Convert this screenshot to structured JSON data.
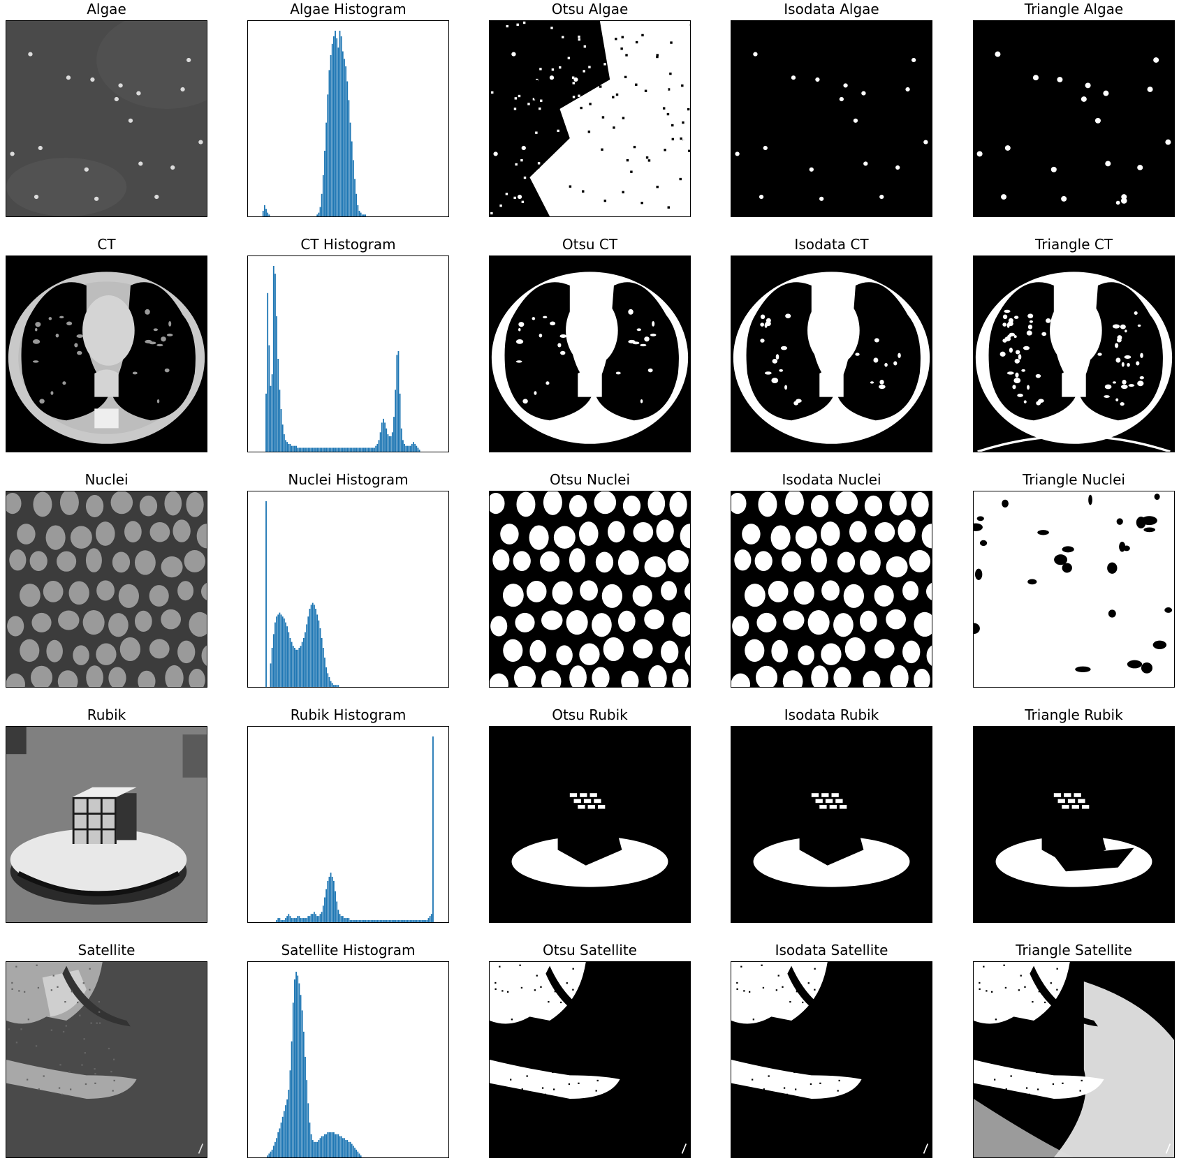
{
  "figure": {
    "rows": [
      {
        "name": "Algae",
        "titles": [
          "Algae",
          "Algae Histogram",
          "Otsu Algae",
          "Isodata Algae",
          "Triangle Algae"
        ],
        "scene": "algae",
        "histogram": [
          0,
          0,
          0,
          3,
          6,
          4,
          2,
          1,
          0,
          0,
          0,
          0,
          0,
          0,
          0,
          0,
          0,
          0,
          0,
          0,
          0,
          0,
          0,
          0,
          0,
          0,
          0,
          0,
          0,
          0,
          0,
          0,
          0,
          0,
          0,
          0,
          0,
          0,
          0,
          1,
          2,
          5,
          12,
          22,
          35,
          50,
          65,
          78,
          86,
          92,
          96,
          99,
          95,
          90,
          99,
          96,
          88,
          84,
          80,
          72,
          62,
          50,
          40,
          30,
          20,
          12,
          6,
          3,
          2,
          1,
          1,
          1,
          0,
          0,
          0,
          0,
          0,
          0,
          0,
          0,
          0,
          0,
          0,
          0,
          0,
          0,
          0,
          0,
          0,
          0,
          0,
          0,
          0,
          0,
          0,
          0,
          0,
          0,
          0,
          0,
          0,
          0,
          0,
          0,
          0,
          0,
          0,
          0,
          0,
          0,
          0,
          0,
          0,
          0,
          0,
          0,
          0,
          0,
          0,
          0
        ]
      },
      {
        "name": "CT",
        "titles": [
          "CT",
          "CT Histogram",
          "Otsu CT",
          "Isodata CT",
          "Triangle CT"
        ],
        "scene": "ct",
        "histogram": [
          0,
          0,
          0,
          0,
          0,
          30,
          82,
          55,
          34,
          40,
          96,
          92,
          70,
          48,
          32,
          22,
          14,
          9,
          6,
          5,
          4,
          4,
          3,
          3,
          3,
          3,
          2,
          2,
          2,
          2,
          2,
          2,
          2,
          2,
          2,
          2,
          2,
          2,
          2,
          2,
          2,
          2,
          2,
          2,
          2,
          2,
          2,
          2,
          2,
          2,
          2,
          2,
          2,
          2,
          2,
          2,
          2,
          2,
          2,
          2,
          2,
          2,
          2,
          2,
          2,
          2,
          2,
          2,
          2,
          2,
          2,
          2,
          2,
          2,
          2,
          2,
          2,
          2,
          3,
          4,
          6,
          10,
          15,
          17,
          15,
          12,
          9,
          8,
          8,
          10,
          18,
          32,
          50,
          52,
          30,
          12,
          6,
          4,
          3,
          3,
          3,
          3,
          4,
          5,
          4,
          3,
          2,
          1,
          0,
          0,
          0,
          0,
          0,
          0,
          0,
          0,
          0,
          0,
          0,
          0
        ]
      },
      {
        "name": "Nuclei",
        "titles": [
          "Nuclei",
          "Nuclei Histogram",
          "Otsu Nuclei",
          "Isodata Nuclei",
          "Triangle Nuclei"
        ],
        "scene": "nuclei",
        "histogram": [
          0,
          0,
          0,
          0,
          0,
          95,
          0,
          0,
          12,
          20,
          27,
          33,
          36,
          37,
          38,
          37,
          36,
          35,
          33,
          31,
          28,
          25,
          23,
          21,
          20,
          19,
          19,
          20,
          21,
          23,
          25,
          28,
          32,
          36,
          40,
          42,
          43,
          42,
          40,
          37,
          34,
          30,
          25,
          20,
          15,
          10,
          7,
          5,
          3,
          2,
          1,
          1,
          1,
          1,
          0,
          0,
          0,
          0,
          0,
          0,
          0,
          0,
          0,
          0,
          0,
          0,
          0,
          0,
          0,
          0,
          0,
          0,
          0,
          0,
          0,
          0,
          0,
          0,
          0,
          0,
          0,
          0,
          0,
          0,
          0,
          0,
          0,
          0,
          0,
          0,
          0,
          0,
          0,
          0,
          0,
          0,
          0,
          0,
          0,
          0,
          0,
          0,
          0,
          0,
          0,
          0,
          0,
          0,
          0,
          0,
          0,
          0,
          0,
          0,
          0,
          0,
          0,
          0,
          0,
          0
        ]
      },
      {
        "name": "Rubik",
        "titles": [
          "Rubik",
          "Rubik Histogram",
          "Otsu Rubik",
          "Isodata Rubik",
          "Triangle Rubik"
        ],
        "scene": "rubik",
        "histogram": [
          0,
          0,
          0,
          0,
          0,
          0,
          0,
          0,
          0,
          0,
          0,
          0,
          1,
          2,
          2,
          1,
          1,
          1,
          2,
          3,
          4,
          3,
          2,
          2,
          2,
          2,
          3,
          3,
          2,
          2,
          2,
          2,
          2,
          3,
          3,
          4,
          4,
          5,
          4,
          3,
          3,
          4,
          5,
          8,
          12,
          16,
          20,
          22,
          24,
          22,
          20,
          15,
          10,
          6,
          4,
          3,
          3,
          2,
          2,
          2,
          2,
          1,
          1,
          1,
          1,
          1,
          1,
          1,
          1,
          1,
          1,
          1,
          1,
          1,
          1,
          1,
          1,
          1,
          1,
          1,
          1,
          1,
          1,
          1,
          1,
          1,
          1,
          1,
          1,
          1,
          1,
          1,
          1,
          1,
          1,
          1,
          1,
          1,
          1,
          1,
          1,
          1,
          1,
          1,
          1,
          1,
          1,
          1,
          1,
          1,
          1,
          1,
          1,
          2,
          3,
          4,
          90,
          0,
          0,
          0
        ]
      },
      {
        "name": "Satellite",
        "titles": [
          "Satellite",
          "Satellite Histogram",
          "Otsu Satellite",
          "Isodata Satellite",
          "Triangle Satellite"
        ],
        "scene": "satellite",
        "histogram": [
          0,
          0,
          0,
          0,
          0,
          0,
          1,
          2,
          3,
          4,
          6,
          8,
          10,
          13,
          15,
          18,
          21,
          24,
          27,
          30,
          35,
          45,
          60,
          80,
          92,
          96,
          94,
          90,
          84,
          76,
          65,
          52,
          40,
          28,
          18,
          12,
          9,
          8,
          8,
          8,
          9,
          10,
          11,
          11,
          12,
          12,
          13,
          13,
          13,
          13,
          13,
          12,
          12,
          12,
          11,
          11,
          10,
          10,
          9,
          9,
          8,
          8,
          7,
          6,
          5,
          4,
          3,
          2,
          1,
          0,
          0,
          0,
          0,
          0,
          0,
          0,
          0,
          0,
          0,
          0,
          0,
          0,
          0,
          0,
          0,
          0,
          0,
          0,
          0,
          0,
          0,
          0,
          0,
          0,
          0,
          0,
          0,
          0,
          0,
          0,
          0,
          0,
          0,
          0,
          0,
          0,
          0,
          0,
          0,
          0,
          0,
          0,
          0,
          0,
          0,
          0,
          0,
          0,
          0,
          0
        ]
      }
    ],
    "colors": {
      "histogram_bar": "#1f77b4",
      "frame": "#000000"
    }
  }
}
